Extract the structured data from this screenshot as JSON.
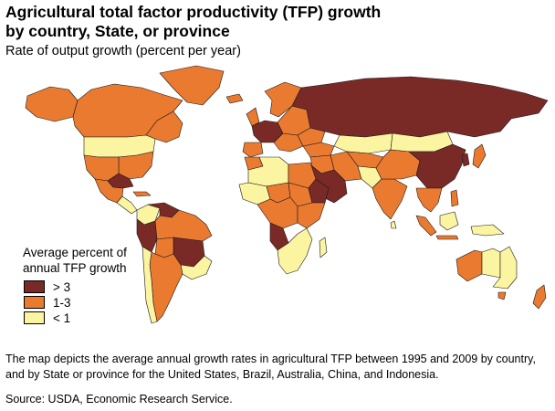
{
  "title": "Agricultural total factor productivity (TFP) growth\nby country, State, or province",
  "subtitle": "Rate of output growth (percent per year)",
  "legend": {
    "title": "Average percent of\nannual TFP growth",
    "items": [
      {
        "label": "> 3",
        "color": "#7a2a26"
      },
      {
        "label": "1-3",
        "color": "#ea7a30"
      },
      {
        "label": "< 1",
        "color": "#fbf4a0"
      }
    ]
  },
  "description": "The map depicts the average annual growth rates in agricultural TFP between 1995 and 2009 by country, and by State or province for the United States, Brazil, Australia, China, and Indonesia.",
  "source": "Source: USDA, Economic Research Service."
}
